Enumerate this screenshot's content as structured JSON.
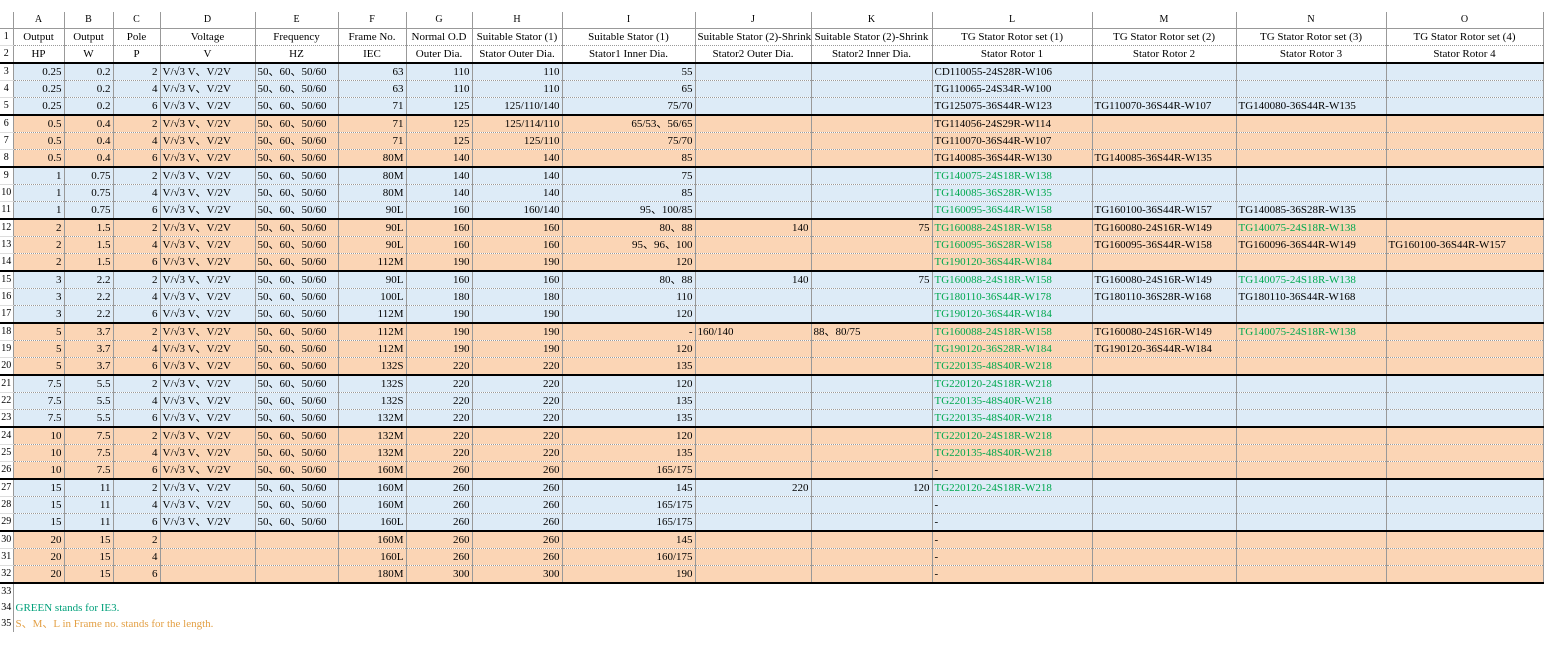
{
  "column_letters": [
    "A",
    "B",
    "C",
    "D",
    "E",
    "F",
    "G",
    "H",
    "I",
    "J",
    "K",
    "L",
    "M",
    "N",
    "O"
  ],
  "row_numbers": [
    1,
    2,
    3,
    4,
    5,
    6,
    7,
    8,
    9,
    10,
    11,
    12,
    13,
    14,
    15,
    16,
    17,
    18,
    19,
    20,
    21,
    22,
    23,
    24,
    25,
    26,
    27,
    28,
    29,
    30,
    31,
    32,
    33,
    34,
    35
  ],
  "header_rows": [
    [
      "Output",
      "Output",
      "Pole",
      "Voltage",
      "Frequency",
      "Frame No.",
      "Normal O.D",
      "Suitable Stator (1)",
      "Suitable Stator (1)",
      "Suitable Stator (2)-Shrink",
      "Suitable Stator (2)-Shrink",
      "TG Stator Rotor set (1)",
      "TG Stator Rotor set (2)",
      "TG Stator Rotor set (3)",
      "TG Stator Rotor set (4)"
    ],
    [
      "HP",
      "W",
      "P",
      "V",
      "HZ",
      "IEC",
      "Outer Dia.",
      "Stator Outer Dia.",
      "Stator1 Inner Dia.",
      "Stator2 Outer Dia.",
      "Stator2 Inner Dia.",
      "Stator Rotor 1",
      "Stator Rotor 2",
      "Stator Rotor 3",
      "Stator Rotor 4"
    ]
  ],
  "green_color": "#00a84f",
  "groups": [
    {
      "color": "#ddebf7",
      "rows": [
        {
          "cells": [
            0.25,
            0.2,
            2,
            "V/√3 V、V/2V",
            "50、60、50/60",
            63,
            110,
            110,
            55,
            null,
            null,
            "CD110055-24S28R-W106",
            null,
            null,
            null
          ]
        },
        {
          "cells": [
            0.25,
            0.2,
            4,
            "V/√3 V、V/2V",
            "50、60、50/60",
            63,
            110,
            110,
            65,
            null,
            null,
            "TG110065-24S34R-W100",
            null,
            null,
            null
          ]
        },
        {
          "cells": [
            0.25,
            0.2,
            6,
            "V/√3 V、V/2V",
            "50、60、50/60",
            71,
            125,
            "125/110/140",
            "75/70",
            null,
            null,
            "TG125075-36S44R-W123",
            "TG110070-36S44R-W107",
            "TG140080-36S44R-W135",
            null
          ]
        }
      ]
    },
    {
      "color": "#fbd5b5",
      "rows": [
        {
          "cells": [
            0.5,
            0.4,
            2,
            "V/√3 V、V/2V",
            "50、60、50/60",
            71,
            125,
            "125/114/110",
            "65/53、56/65",
            null,
            null,
            "TG114056-24S29R-W114",
            null,
            null,
            null
          ]
        },
        {
          "cells": [
            0.5,
            0.4,
            4,
            "V/√3 V、V/2V",
            "50、60、50/60",
            71,
            125,
            "125/110",
            "75/70",
            null,
            null,
            "TG110070-36S44R-W107",
            null,
            null,
            null
          ]
        },
        {
          "cells": [
            0.5,
            0.4,
            6,
            "V/√3 V、V/2V",
            "50、60、50/60",
            "80M",
            140,
            140,
            85,
            null,
            null,
            "TG140085-36S44R-W130",
            "TG140085-36S44R-W135",
            null,
            null
          ]
        }
      ]
    },
    {
      "color": "#ddebf7",
      "rows": [
        {
          "cells": [
            1,
            0.75,
            2,
            "V/√3 V、V/2V",
            "50、60、50/60",
            "80M",
            140,
            140,
            75,
            null,
            null,
            "TG140075-24S18R-W138",
            null,
            null,
            null
          ],
          "green": [
            11
          ]
        },
        {
          "cells": [
            1,
            0.75,
            4,
            "V/√3 V、V/2V",
            "50、60、50/60",
            "80M",
            140,
            140,
            85,
            null,
            null,
            "TG140085-36S28R-W135",
            null,
            null,
            null
          ],
          "green": [
            11
          ]
        },
        {
          "cells": [
            1,
            0.75,
            6,
            "V/√3 V、V/2V",
            "50、60、50/60",
            "90L",
            160,
            "160/140",
            "95、100/85",
            null,
            null,
            "TG160095-36S44R-W158",
            "TG160100-36S44R-W157",
            "TG140085-36S28R-W135",
            null
          ],
          "green": [
            11
          ]
        }
      ]
    },
    {
      "color": "#fbd5b5",
      "rows": [
        {
          "cells": [
            2,
            1.5,
            2,
            "V/√3 V、V/2V",
            "50、60、50/60",
            "90L",
            160,
            160,
            "80、88",
            140,
            75,
            "TG160088-24S18R-W158",
            "TG160080-24S16R-W149",
            "TG140075-24S18R-W138",
            null
          ],
          "green": [
            11,
            13
          ]
        },
        {
          "cells": [
            2,
            1.5,
            4,
            "V/√3 V、V/2V",
            "50、60、50/60",
            "90L",
            160,
            160,
            "95、96、100",
            null,
            null,
            "TG160095-36S28R-W158",
            "TG160095-36S44R-W158",
            "TG160096-36S44R-W149",
            "TG160100-36S44R-W157"
          ],
          "green": [
            11
          ]
        },
        {
          "cells": [
            2,
            1.5,
            6,
            "V/√3 V、V/2V",
            "50、60、50/60",
            "112M",
            190,
            190,
            120,
            null,
            null,
            "TG190120-36S44R-W184",
            null,
            null,
            null
          ],
          "green": [
            11
          ]
        }
      ]
    },
    {
      "color": "#ddebf7",
      "rows": [
        {
          "cells": [
            3,
            2.2,
            2,
            "V/√3 V、V/2V",
            "50、60、50/60",
            "90L",
            160,
            160,
            "80、88",
            140,
            75,
            "TG160088-24S18R-W158",
            "TG160080-24S16R-W149",
            "TG140075-24S18R-W138",
            null
          ],
          "green": [
            11,
            13
          ]
        },
        {
          "cells": [
            3,
            2.2,
            4,
            "V/√3 V、V/2V",
            "50、60、50/60",
            "100L",
            180,
            180,
            110,
            null,
            null,
            "TG180110-36S44R-W178",
            "TG180110-36S28R-W168",
            "TG180110-36S44R-W168",
            null
          ],
          "green": [
            11
          ]
        },
        {
          "cells": [
            3,
            2.2,
            6,
            "V/√3 V、V/2V",
            "50、60、50/60",
            "112M",
            190,
            190,
            120,
            null,
            null,
            "TG190120-36S44R-W184",
            null,
            null,
            null
          ],
          "green": [
            11
          ]
        }
      ]
    },
    {
      "color": "#fbd5b5",
      "rows": [
        {
          "cells": [
            5,
            3.7,
            2,
            "V/√3 V、V/2V",
            "50、60、50/60",
            "112M",
            190,
            190,
            "-",
            "160/140",
            "88、80/75",
            "TG160088-24S18R-W158",
            "TG160080-24S16R-W149",
            "TG140075-24S18R-W138",
            null
          ],
          "green": [
            11,
            13
          ]
        },
        {
          "cells": [
            5,
            3.7,
            4,
            "V/√3 V、V/2V",
            "50、60、50/60",
            "112M",
            190,
            190,
            120,
            null,
            null,
            "TG190120-36S28R-W184",
            "TG190120-36S44R-W184",
            null,
            null
          ],
          "green": [
            11
          ]
        },
        {
          "cells": [
            5,
            3.7,
            6,
            "V/√3 V、V/2V",
            "50、60、50/60",
            "132S",
            220,
            220,
            135,
            null,
            null,
            "TG220135-48S40R-W218",
            null,
            null,
            null
          ],
          "green": [
            11
          ]
        }
      ]
    },
    {
      "color": "#ddebf7",
      "rows": [
        {
          "cells": [
            7.5,
            5.5,
            2,
            "V/√3 V、V/2V",
            "50、60、50/60",
            "132S",
            220,
            220,
            120,
            null,
            null,
            "TG220120-24S18R-W218",
            null,
            null,
            null
          ],
          "green": [
            11
          ]
        },
        {
          "cells": [
            7.5,
            5.5,
            4,
            "V/√3 V、V/2V",
            "50、60、50/60",
            "132S",
            220,
            220,
            135,
            null,
            null,
            "TG220135-48S40R-W218",
            null,
            null,
            null
          ],
          "green": [
            11
          ]
        },
        {
          "cells": [
            7.5,
            5.5,
            6,
            "V/√3 V、V/2V",
            "50、60、50/60",
            "132M",
            220,
            220,
            135,
            null,
            null,
            "TG220135-48S40R-W218",
            null,
            null,
            null
          ],
          "green": [
            11
          ]
        }
      ]
    },
    {
      "color": "#fbd5b5",
      "rows": [
        {
          "cells": [
            10,
            7.5,
            2,
            "V/√3 V、V/2V",
            "50、60、50/60",
            "132M",
            220,
            220,
            120,
            null,
            null,
            "TG220120-24S18R-W218",
            null,
            null,
            null
          ],
          "green": [
            11
          ]
        },
        {
          "cells": [
            10,
            7.5,
            4,
            "V/√3 V、V/2V",
            "50、60、50/60",
            "132M",
            220,
            220,
            135,
            null,
            null,
            "TG220135-48S40R-W218",
            null,
            null,
            null
          ],
          "green": [
            11
          ]
        },
        {
          "cells": [
            10,
            7.5,
            6,
            "V/√3 V、V/2V",
            "50、60、50/60",
            "160M",
            260,
            260,
            "165/175",
            null,
            null,
            "-",
            null,
            null,
            null
          ]
        }
      ]
    },
    {
      "color": "#ddebf7",
      "rows": [
        {
          "cells": [
            15,
            11,
            2,
            "V/√3 V、V/2V",
            "50、60、50/60",
            "160M",
            260,
            260,
            145,
            220,
            120,
            "TG220120-24S18R-W218",
            null,
            null,
            null
          ],
          "green": [
            11
          ]
        },
        {
          "cells": [
            15,
            11,
            4,
            "V/√3 V、V/2V",
            "50、60、50/60",
            "160M",
            260,
            260,
            "165/175",
            null,
            null,
            "-",
            null,
            null,
            null
          ]
        },
        {
          "cells": [
            15,
            11,
            6,
            "V/√3 V、V/2V",
            "50、60、50/60",
            "160L",
            260,
            260,
            "165/175",
            null,
            null,
            "-",
            null,
            null,
            null
          ]
        }
      ]
    },
    {
      "color": "#fbd5b5",
      "rows": [
        {
          "cells": [
            20,
            15,
            2,
            null,
            null,
            "160M",
            260,
            260,
            145,
            null,
            null,
            "-",
            null,
            null,
            null
          ]
        },
        {
          "cells": [
            20,
            15,
            4,
            null,
            null,
            "160L",
            260,
            260,
            "160/175",
            null,
            null,
            "-",
            null,
            null,
            null
          ]
        },
        {
          "cells": [
            20,
            15,
            6,
            null,
            null,
            "180M",
            300,
            300,
            190,
            null,
            null,
            "-",
            null,
            null,
            null
          ]
        }
      ]
    }
  ],
  "notes": [
    {
      "text": "GREEN stands for IE3.",
      "color": "#00a07a"
    },
    {
      "text": "S、M、L in Frame no. stands for the length.",
      "color": "#e3a045"
    }
  ]
}
